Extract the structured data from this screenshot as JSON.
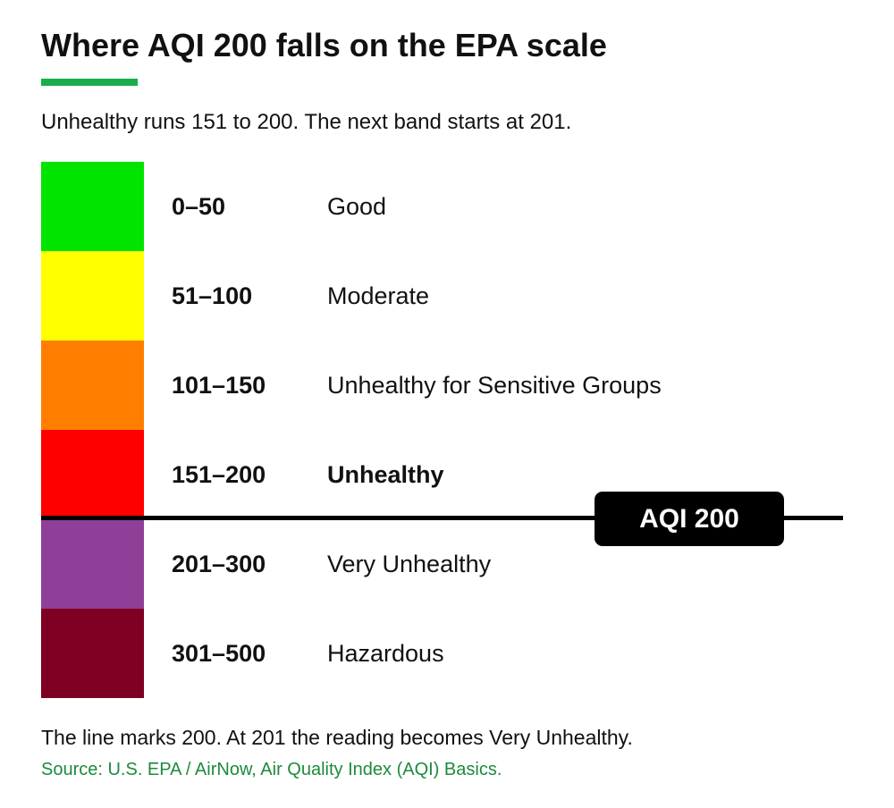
{
  "title": "Where AQI 200 falls on the EPA scale",
  "subtitle": "Unhealthy runs 151 to 200. The next band starts at 201.",
  "accent_color": "#1aad4b",
  "bands": [
    {
      "range": "0–50",
      "label": "Good",
      "color": "#00e400",
      "emphasis": false
    },
    {
      "range": "51–100",
      "label": "Moderate",
      "color": "#ffff00",
      "emphasis": false
    },
    {
      "range": "101–150",
      "label": "Unhealthy for Sensitive Groups",
      "color": "#ff7e00",
      "emphasis": false
    },
    {
      "range": "151–200",
      "label": "Unhealthy",
      "color": "#ff0000",
      "emphasis": true
    },
    {
      "range": "201–300",
      "label": "Very Unhealthy",
      "color": "#8f3f97",
      "emphasis": false
    },
    {
      "range": "301–500",
      "label": "Hazardous",
      "color": "#7e0023",
      "emphasis": false
    }
  ],
  "marker": {
    "label": "AQI 200",
    "value": 200
  },
  "footnote": "The line marks 200. At 201 the reading becomes Very Unhealthy.",
  "source": "Source: U.S. EPA / AirNow, Air Quality Index (AQI) Basics.",
  "source_color": "#1e8a3c"
}
